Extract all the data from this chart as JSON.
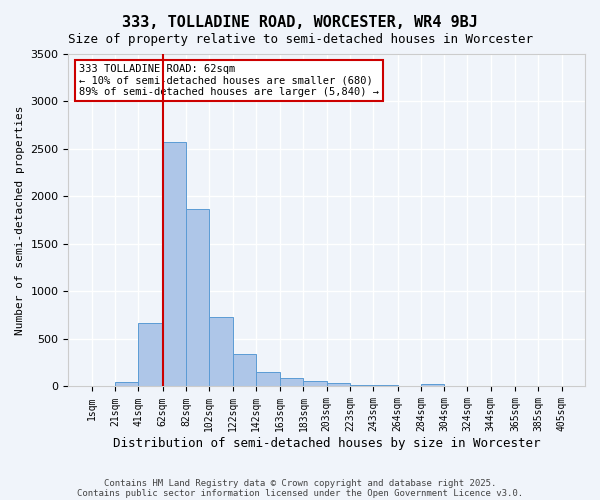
{
  "title": "333, TOLLADINE ROAD, WORCESTER, WR4 9BJ",
  "subtitle": "Size of property relative to semi-detached houses in Worcester",
  "xlabel": "Distribution of semi-detached houses by size in Worcester",
  "ylabel": "Number of semi-detached properties",
  "footer1": "Contains HM Land Registry data © Crown copyright and database right 2025.",
  "footer2": "Contains public sector information licensed under the Open Government Licence v3.0.",
  "annotation_title": "333 TOLLADINE ROAD: 62sqm",
  "annotation_line1": "← 10% of semi-detached houses are smaller (680)",
  "annotation_line2": "89% of semi-detached houses are larger (5,840) →",
  "property_size": 62,
  "bar_left_edges": [
    1,
    21,
    41,
    62,
    82,
    102,
    122,
    142,
    163,
    183,
    203,
    223,
    243,
    264,
    284,
    304,
    324,
    344,
    365,
    385
  ],
  "bar_widths": [
    20,
    20,
    21,
    20,
    20,
    20,
    20,
    21,
    20,
    20,
    20,
    20,
    21,
    20,
    20,
    20,
    20,
    21,
    20,
    20
  ],
  "bar_heights": [
    0,
    50,
    670,
    2570,
    1870,
    730,
    340,
    150,
    90,
    55,
    35,
    20,
    15,
    0,
    30,
    0,
    0,
    0,
    0,
    0
  ],
  "tick_labels": [
    "1sqm",
    "21sqm",
    "41sqm",
    "62sqm",
    "82sqm",
    "102sqm",
    "122sqm",
    "142sqm",
    "163sqm",
    "183sqm",
    "203sqm",
    "223sqm",
    "243sqm",
    "264sqm",
    "284sqm",
    "304sqm",
    "324sqm",
    "344sqm",
    "365sqm",
    "385sqm",
    "405sqm"
  ],
  "tick_positions": [
    1,
    21,
    41,
    62,
    82,
    102,
    122,
    142,
    163,
    183,
    203,
    223,
    243,
    264,
    284,
    304,
    324,
    344,
    365,
    385,
    405
  ],
  "ylim": [
    0,
    3500
  ],
  "bar_color": "#aec6e8",
  "bar_edge_color": "#5b9bd5",
  "red_line_color": "#cc0000",
  "background_color": "#f0f4fa",
  "grid_color": "#ffffff",
  "annotation_box_color": "#ffffff",
  "annotation_box_edge": "#cc0000"
}
